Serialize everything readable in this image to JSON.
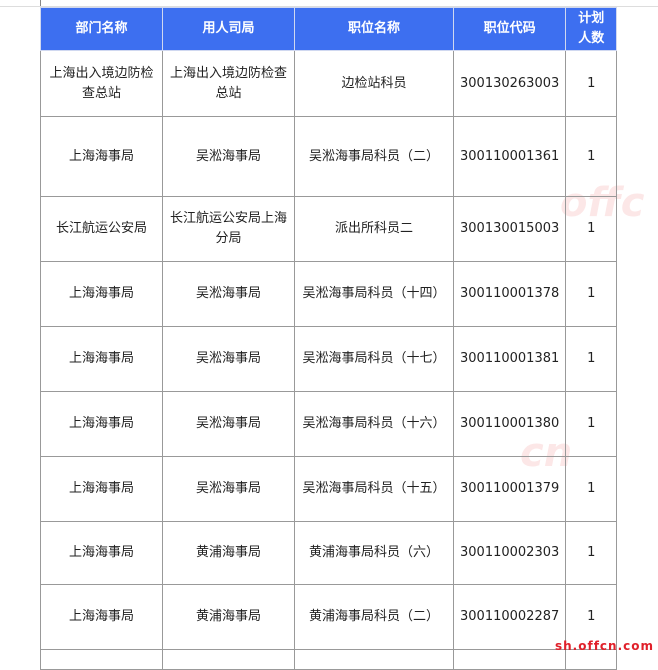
{
  "table": {
    "headers": [
      "部门名称",
      "用人司局",
      "职位名称",
      "职位代码",
      "计划人数"
    ],
    "rows": [
      [
        "上海出入境边防检查总站",
        "上海出入境边防检查总站",
        "边检站科员",
        "300130263003",
        "1"
      ],
      [
        "上海海事局",
        "吴淞海事局",
        "吴淞海事局科员（二）",
        "300110001361",
        "1"
      ],
      [
        "长江航运公安局",
        "长江航运公安局上海分局",
        "派出所科员二",
        "300130015003",
        "1"
      ],
      [
        "上海海事局",
        "吴淞海事局",
        "吴淞海事局科员（十四）",
        "300110001378",
        "1"
      ],
      [
        "上海海事局",
        "吴淞海事局",
        "吴淞海事局科员（十七）",
        "300110001381",
        "1"
      ],
      [
        "上海海事局",
        "吴淞海事局",
        "吴淞海事局科员（十六）",
        "300110001380",
        "1"
      ],
      [
        "上海海事局",
        "吴淞海事局",
        "吴淞海事局科员（十五）",
        "300110001379",
        "1"
      ],
      [
        "上海海事局",
        "黄浦海事局",
        "黄浦海事局科员（六）",
        "300110002303",
        "1"
      ],
      [
        "上海海事局",
        "黄浦海事局",
        "黄浦海事局科员（二）",
        "300110002287",
        "1"
      ]
    ]
  },
  "watermark": "sh.offcn.com",
  "colors": {
    "header_bg": "#3d6ff0",
    "watermark": "#e0202a"
  }
}
